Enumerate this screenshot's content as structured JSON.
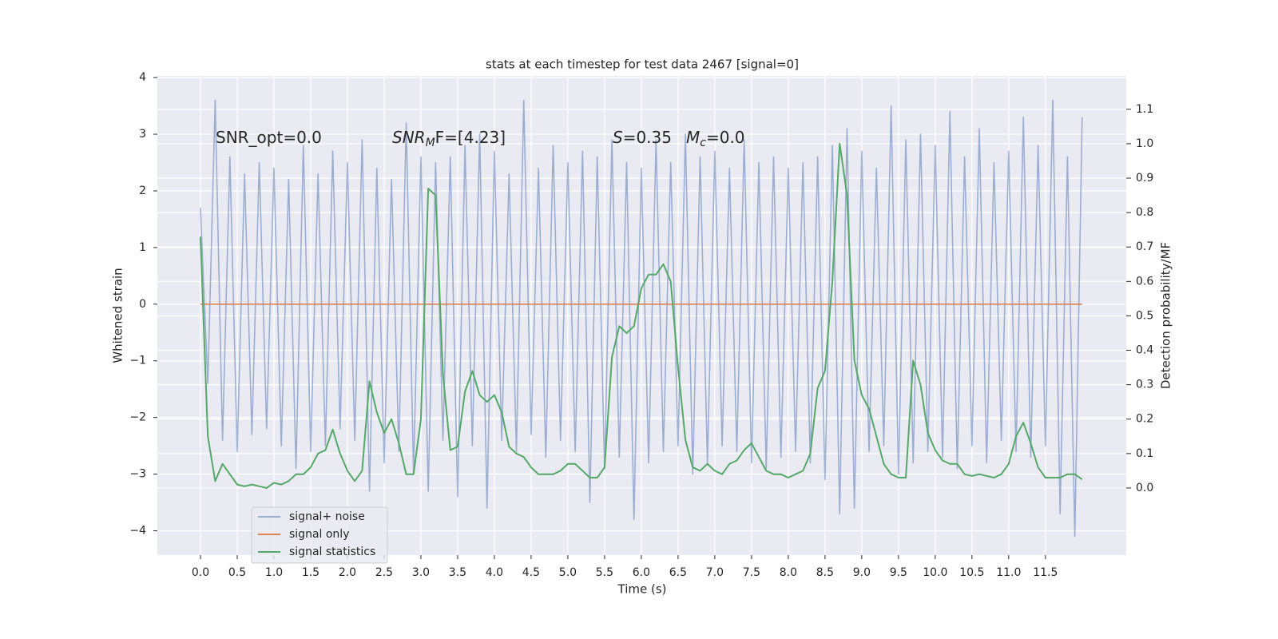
{
  "chart_data": {
    "type": "line",
    "title": "stats at each timestep for test data 2467 [signal=0]",
    "x_label": "Time (s)",
    "y_label": "Whitened strain",
    "y2_label": "Detection probability/MF",
    "annotations": [
      {
        "base": "SNR_opt=0.0"
      },
      {
        "base": "SNR",
        "sub": "M",
        "rest": "F=[4.23]"
      },
      {
        "base": "S",
        "rest": "=0.35"
      },
      {
        "base": "M",
        "sub": "c",
        "rest": "=0.0"
      }
    ],
    "xlim": [
      -0.587,
      12.6
    ],
    "ylim": [
      -4.43,
      4.03
    ],
    "y2lim": [
      -0.195,
      1.197
    ],
    "xticks": [
      {
        "value": 0,
        "label": "0.0"
      },
      0.5,
      {
        "value": 1,
        "label": "1.0"
      },
      1.5,
      {
        "value": 2,
        "label": "2.0"
      },
      2.5,
      {
        "value": 3,
        "label": "3.0"
      },
      3.5,
      {
        "value": 4,
        "label": "4.0"
      },
      4.5,
      {
        "value": 5,
        "label": "5.0"
      },
      5.5,
      {
        "value": 6,
        "label": "6.0"
      },
      6.5,
      {
        "value": 7,
        "label": "7.0"
      },
      7.5,
      {
        "value": 8,
        "label": "8.0"
      },
      8.5,
      {
        "value": 9,
        "label": "9.0"
      },
      9.5,
      {
        "value": 10,
        "label": "10.0"
      },
      10.5,
      {
        "value": 11,
        "label": "11.0"
      },
      11.5
    ],
    "yticks": [
      {
        "value": -4,
        "label": "−4"
      },
      {
        "value": -3,
        "label": "−3"
      },
      {
        "value": -2,
        "label": "−2"
      },
      {
        "value": -1,
        "label": "−1"
      },
      0,
      1,
      2,
      3,
      4
    ],
    "y2ticks": [
      {
        "value": 0,
        "label": "0.0"
      },
      0.1,
      0.2,
      0.3,
      0.4,
      0.5,
      0.6,
      0.7,
      0.8,
      0.9,
      {
        "value": 1,
        "label": "1.0"
      },
      1.1
    ],
    "grid": true,
    "legend_loc": "lower left",
    "x": [
      0,
      0.1,
      0.2,
      0.3,
      0.4,
      0.5,
      0.6,
      0.7,
      0.8,
      0.9,
      1,
      1.1,
      1.2,
      1.3,
      1.4,
      1.5,
      1.6,
      1.7,
      1.8,
      1.9,
      2,
      2.1,
      2.2,
      2.3,
      2.4,
      2.5,
      2.6,
      2.7,
      2.8,
      2.9,
      3,
      3.1,
      3.2,
      3.3,
      3.4,
      3.5,
      3.6,
      3.7,
      3.8,
      3.9,
      4,
      4.1,
      4.2,
      4.3,
      4.4,
      4.5,
      4.6,
      4.7,
      4.8,
      4.9,
      5,
      5.1,
      5.2,
      5.3,
      5.4,
      5.5,
      5.6,
      5.7,
      5.8,
      5.9,
      6,
      6.1,
      6.2,
      6.3,
      6.4,
      6.5,
      6.6,
      6.7,
      6.8,
      6.9,
      7,
      7.1,
      7.2,
      7.3,
      7.4,
      7.5,
      7.6,
      7.7,
      7.8,
      7.9,
      8,
      8.1,
      8.2,
      8.3,
      8.4,
      8.5,
      8.6,
      8.7,
      8.8,
      8.9,
      9,
      9.1,
      9.2,
      9.3,
      9.4,
      9.5,
      9.6,
      9.7,
      9.8,
      9.9,
      10,
      10.1,
      10.2,
      10.3,
      10.4,
      10.5,
      10.6,
      10.7,
      10.8,
      10.9,
      11,
      11.1,
      11.2,
      11.3,
      11.4,
      11.5,
      11.6,
      11.7,
      11.8,
      11.9,
      12
    ],
    "series": [
      {
        "name": "signal+ noise",
        "color": "#4c72b0",
        "opacity": 0.5,
        "axis": "y",
        "values": [
          1.7,
          -1.4,
          3.6,
          -2.4,
          2.6,
          -2.6,
          2.3,
          -2.3,
          2.5,
          -2.2,
          2.4,
          -2.5,
          2.2,
          -2.9,
          2.8,
          -2.6,
          2.3,
          -2.5,
          2.7,
          -2.2,
          2.5,
          -2.4,
          2.9,
          -3.3,
          2.4,
          -2.8,
          2.2,
          -2.6,
          3.2,
          -3.0,
          2.6,
          -3.3,
          2.5,
          -2.4,
          2.6,
          -3.4,
          2.8,
          -2.5,
          3.0,
          -3.6,
          2.7,
          -2.4,
          2.3,
          -2.6,
          3.6,
          -2.3,
          2.4,
          -2.7,
          2.8,
          -2.4,
          2.5,
          -2.6,
          2.7,
          -3.5,
          2.6,
          -2.9,
          2.9,
          -2.7,
          2.5,
          -3.8,
          2.4,
          -2.8,
          2.9,
          -2.6,
          2.5,
          -2.5,
          3.0,
          -3.0,
          2.6,
          -2.8,
          2.7,
          -2.5,
          2.4,
          -2.6,
          2.9,
          -2.8,
          2.5,
          -2.9,
          2.6,
          -2.7,
          2.4,
          -2.6,
          2.5,
          -2.8,
          2.6,
          -3.1,
          2.8,
          -3.7,
          3.1,
          -3.6,
          2.7,
          -2.6,
          2.4,
          -2.5,
          3.5,
          -3.0,
          2.9,
          -2.8,
          3.0,
          -2.6,
          2.8,
          -2.7,
          3.4,
          -2.9,
          2.6,
          -2.5,
          3.1,
          -2.8,
          2.5,
          -2.4,
          2.7,
          -2.6,
          3.3,
          -2.7,
          2.8,
          -2.5,
          3.6,
          -3.7,
          2.6,
          -4.1,
          3.3
        ]
      },
      {
        "name": "signal only",
        "color": "#dd8452",
        "opacity": 1,
        "axis": "y",
        "values": [
          0,
          0,
          0,
          0,
          0,
          0,
          0,
          0,
          0,
          0,
          0,
          0,
          0,
          0,
          0,
          0,
          0,
          0,
          0,
          0,
          0,
          0,
          0,
          0,
          0,
          0,
          0,
          0,
          0,
          0,
          0,
          0,
          0,
          0,
          0,
          0,
          0,
          0,
          0,
          0,
          0,
          0,
          0,
          0,
          0,
          0,
          0,
          0,
          0,
          0,
          0,
          0,
          0,
          0,
          0,
          0,
          0,
          0,
          0,
          0,
          0,
          0,
          0,
          0,
          0,
          0,
          0,
          0,
          0,
          0,
          0,
          0,
          0,
          0,
          0,
          0,
          0,
          0,
          0,
          0,
          0,
          0,
          0,
          0,
          0,
          0,
          0,
          0,
          0,
          0,
          0,
          0,
          0,
          0,
          0,
          0,
          0,
          0,
          0,
          0,
          0,
          0,
          0,
          0,
          0,
          0,
          0,
          0,
          0,
          0,
          0,
          0,
          0,
          0,
          0,
          0,
          0,
          0,
          0,
          0,
          0
        ]
      },
      {
        "name": "signal statistics",
        "color": "#55a868",
        "opacity": 1,
        "axis": "y2",
        "values": [
          0.73,
          0.15,
          0.02,
          0.07,
          0.04,
          0.01,
          0.005,
          0.01,
          0.005,
          0.0,
          0.015,
          0.01,
          0.02,
          0.04,
          0.04,
          0.06,
          0.1,
          0.11,
          0.17,
          0.1,
          0.05,
          0.02,
          0.05,
          0.31,
          0.22,
          0.16,
          0.2,
          0.13,
          0.04,
          0.04,
          0.2,
          0.87,
          0.85,
          0.33,
          0.11,
          0.12,
          0.28,
          0.34,
          0.27,
          0.25,
          0.27,
          0.22,
          0.12,
          0.1,
          0.09,
          0.06,
          0.04,
          0.04,
          0.04,
          0.05,
          0.07,
          0.07,
          0.05,
          0.03,
          0.03,
          0.06,
          0.38,
          0.47,
          0.45,
          0.47,
          0.58,
          0.62,
          0.62,
          0.65,
          0.6,
          0.35,
          0.14,
          0.06,
          0.05,
          0.07,
          0.05,
          0.04,
          0.07,
          0.08,
          0.11,
          0.13,
          0.09,
          0.05,
          0.04,
          0.04,
          0.03,
          0.04,
          0.05,
          0.1,
          0.29,
          0.34,
          0.6,
          1.0,
          0.85,
          0.37,
          0.27,
          0.23,
          0.15,
          0.07,
          0.04,
          0.03,
          0.03,
          0.37,
          0.3,
          0.16,
          0.11,
          0.08,
          0.07,
          0.07,
          0.04,
          0.035,
          0.04,
          0.035,
          0.03,
          0.04,
          0.07,
          0.15,
          0.19,
          0.13,
          0.06,
          0.03,
          0.03,
          0.03,
          0.04,
          0.04,
          0.025
        ]
      }
    ]
  }
}
